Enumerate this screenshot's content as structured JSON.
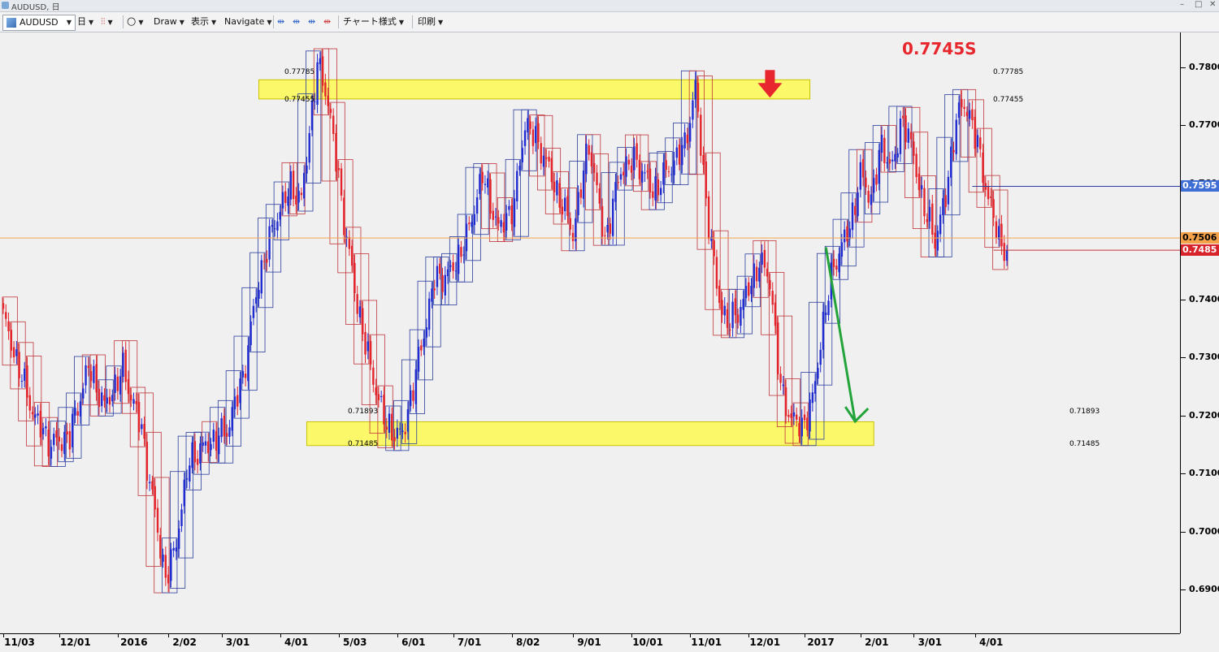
{
  "window": {
    "title": "AUDUSD, 日"
  },
  "toolbar": {
    "symbol": "AUDUSD",
    "timeframe": "日",
    "draw": "Draw",
    "display": "表示",
    "navigate": "Navigate",
    "chart_style": "チャート様式",
    "print": "印刷"
  },
  "annotations": {
    "resistance_top_label": "0.77785",
    "resistance_bottom_label": "0.77455",
    "support_top_label": "0.71893",
    "support_bottom_label": "0.71485",
    "sell_label": "0.7745S"
  },
  "price_boxes": {
    "blue": "0.7595",
    "orange": "0.7506",
    "red": "0.7485"
  },
  "colors": {
    "up": "#1f2bd1",
    "down": "#e4232a",
    "box_blue": "#2b3d9e",
    "box_red": "#c0353b",
    "zone": "#fbf96a",
    "zone_border": "#c9c200",
    "current_line": "#f5a34a",
    "arrow_red": "#e8262d",
    "arrow_green": "#22a43a"
  },
  "chart_data": {
    "type": "candlestick",
    "symbol": "AUDUSD",
    "timeframe": "日",
    "ylim": [
      0.6825,
      0.786
    ],
    "y_ticks": [
      "0.7800[0",
      "0.7700[0",
      "0.7600[0",
      "0.7500[0",
      "0.7400[0",
      "0.7300[0",
      "0.7200[0",
      "0.7100[0",
      "0.7000[0",
      "0.6900[0"
    ],
    "y_tick_values": [
      0.78,
      0.77,
      0.76,
      0.75,
      0.74,
      0.73,
      0.72,
      0.71,
      0.7,
      0.69
    ],
    "x_ticks": [
      "11/03",
      "12/01",
      "2016",
      "2/02",
      "3/01",
      "4/01",
      "5/03",
      "6/01",
      "7/01",
      "8/02",
      "9/01",
      "10/01",
      "11/01",
      "12/01",
      "2017",
      "2/01",
      "3/01",
      "4/01"
    ],
    "x_tick_bars": [
      0,
      21,
      43,
      62,
      82,
      104,
      126,
      148,
      169,
      191,
      214,
      236,
      258,
      280,
      301,
      322,
      342,
      365
    ],
    "bar_count": 378,
    "price_anchors": [
      [
        0,
        0.737
      ],
      [
        6,
        0.728
      ],
      [
        12,
        0.7195
      ],
      [
        18,
        0.715
      ],
      [
        25,
        0.7165
      ],
      [
        32,
        0.7285
      ],
      [
        38,
        0.7215
      ],
      [
        45,
        0.728
      ],
      [
        52,
        0.7175
      ],
      [
        58,
        0.7
      ],
      [
        61,
        0.692
      ],
      [
        64,
        0.696
      ],
      [
        70,
        0.7125
      ],
      [
        78,
        0.7155
      ],
      [
        84,
        0.7175
      ],
      [
        90,
        0.7265
      ],
      [
        96,
        0.7435
      ],
      [
        102,
        0.7535
      ],
      [
        108,
        0.7595
      ],
      [
        112,
        0.757
      ],
      [
        118,
        0.7805
      ],
      [
        122,
        0.7745
      ],
      [
        127,
        0.757
      ],
      [
        132,
        0.7415
      ],
      [
        138,
        0.728
      ],
      [
        144,
        0.718
      ],
      [
        150,
        0.7165
      ],
      [
        156,
        0.7295
      ],
      [
        162,
        0.7435
      ],
      [
        168,
        0.7445
      ],
      [
        174,
        0.7505
      ],
      [
        180,
        0.7615
      ],
      [
        186,
        0.752
      ],
      [
        192,
        0.7565
      ],
      [
        196,
        0.7705
      ],
      [
        202,
        0.766
      ],
      [
        208,
        0.7585
      ],
      [
        214,
        0.7515
      ],
      [
        220,
        0.767
      ],
      [
        226,
        0.75
      ],
      [
        232,
        0.7625
      ],
      [
        238,
        0.764
      ],
      [
        244,
        0.7585
      ],
      [
        250,
        0.7625
      ],
      [
        256,
        0.7665
      ],
      [
        260,
        0.7765
      ],
      [
        264,
        0.757
      ],
      [
        268,
        0.742
      ],
      [
        272,
        0.7355
      ],
      [
        278,
        0.7395
      ],
      [
        284,
        0.7465
      ],
      [
        288,
        0.7435
      ],
      [
        292,
        0.7245
      ],
      [
        296,
        0.7195
      ],
      [
        300,
        0.718
      ],
      [
        304,
        0.7225
      ],
      [
        308,
        0.736
      ],
      [
        312,
        0.746
      ],
      [
        318,
        0.7525
      ],
      [
        322,
        0.7615
      ],
      [
        326,
        0.7575
      ],
      [
        330,
        0.7665
      ],
      [
        334,
        0.7625
      ],
      [
        338,
        0.7715
      ],
      [
        342,
        0.7645
      ],
      [
        346,
        0.7555
      ],
      [
        350,
        0.7505
      ],
      [
        354,
        0.7575
      ],
      [
        358,
        0.7715
      ],
      [
        362,
        0.7735
      ],
      [
        366,
        0.7665
      ],
      [
        370,
        0.7575
      ],
      [
        374,
        0.7505
      ],
      [
        377,
        0.7485
      ]
    ],
    "levels": {
      "resistance_zone": [
        0.77455,
        0.77785
      ],
      "support_zone": [
        0.71485,
        0.71893
      ],
      "sell_price": 0.7745,
      "current_price": 0.7506,
      "blue_line_price": 0.7595,
      "red_line_price": 0.7485
    },
    "resistance_zone_bars": [
      96,
      303
    ],
    "support_zone_bars": [
      114,
      327
    ],
    "sell_arrow_bar": 288,
    "projection": {
      "from_bar": 309,
      "from_price": 0.749,
      "to_bar": 320,
      "to_price": 0.719
    },
    "grid": false
  }
}
